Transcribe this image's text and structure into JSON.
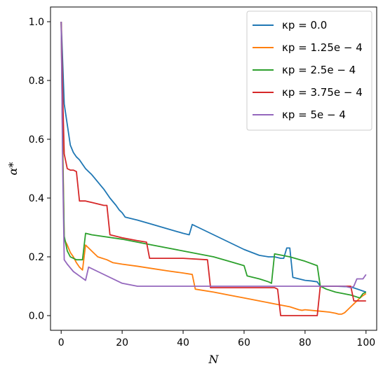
{
  "chart_data": {
    "type": "line",
    "xlabel": "N",
    "ylabel": "α*",
    "xlim": [
      -3.5,
      103.5
    ],
    "ylim": [
      -0.05,
      1.05
    ],
    "xticks": [
      0,
      20,
      40,
      60,
      80,
      100
    ],
    "yticks": [
      0.0,
      0.2,
      0.4,
      0.6,
      0.8,
      1.0
    ],
    "xtick_labels": [
      "0",
      "20",
      "40",
      "60",
      "80",
      "100"
    ],
    "ytick_labels": [
      "0.0",
      "0.2",
      "0.4",
      "0.6",
      "0.8",
      "1.0"
    ],
    "grid": false,
    "legend_position": "top-right",
    "series": [
      {
        "name": "κp = 0.0",
        "color": "#1f77b4",
        "x": [
          0,
          1,
          2,
          3,
          4,
          5,
          6,
          7,
          8,
          10,
          12,
          14,
          16,
          18,
          19,
          20,
          21,
          25,
          30,
          35,
          40,
          42,
          43,
          45,
          50,
          55,
          60,
          65,
          68,
          70,
          72,
          73,
          74,
          75,
          76,
          80,
          82,
          84,
          85,
          90,
          95,
          100
        ],
        "y": [
          1.0,
          0.72,
          0.65,
          0.58,
          0.555,
          0.54,
          0.53,
          0.515,
          0.5,
          0.48,
          0.455,
          0.43,
          0.4,
          0.375,
          0.36,
          0.35,
          0.335,
          0.325,
          0.31,
          0.295,
          0.28,
          0.275,
          0.31,
          0.3,
          0.275,
          0.25,
          0.225,
          0.205,
          0.2,
          0.2,
          0.195,
          0.195,
          0.23,
          0.23,
          0.13,
          0.12,
          0.118,
          0.115,
          0.1,
          0.1,
          0.098,
          0.08
        ]
      },
      {
        "name": "κp = 1.25e − 4",
        "color": "#ff7f0e",
        "x": [
          0,
          0.5,
          1,
          2,
          3,
          4,
          5,
          6,
          7,
          8,
          10,
          12,
          15,
          17,
          20,
          25,
          30,
          35,
          40,
          43,
          44,
          50,
          55,
          60,
          65,
          70,
          75,
          78,
          79,
          80,
          85,
          88,
          90,
          91,
          92,
          93,
          94,
          95,
          96,
          97,
          98,
          99,
          100
        ],
        "y": [
          1.0,
          0.6,
          0.26,
          0.24,
          0.215,
          0.2,
          0.18,
          0.165,
          0.155,
          0.24,
          0.22,
          0.2,
          0.19,
          0.18,
          0.175,
          0.168,
          0.16,
          0.152,
          0.145,
          0.14,
          0.09,
          0.08,
          0.07,
          0.06,
          0.05,
          0.04,
          0.03,
          0.02,
          0.018,
          0.02,
          0.015,
          0.012,
          0.008,
          0.005,
          0.005,
          0.01,
          0.02,
          0.03,
          0.04,
          0.05,
          0.06,
          0.068,
          0.075
        ]
      },
      {
        "name": "κp = 2.5e − 4",
        "color": "#2ca02c",
        "x": [
          0,
          0.5,
          1,
          2,
          3,
          4,
          5,
          6,
          7,
          8,
          10,
          20,
          30,
          40,
          50,
          55,
          60,
          61,
          65,
          68,
          69,
          70,
          75,
          80,
          84,
          85,
          86,
          87,
          90,
          95,
          98,
          99,
          100
        ],
        "y": [
          1.0,
          0.55,
          0.27,
          0.22,
          0.2,
          0.195,
          0.19,
          0.19,
          0.19,
          0.28,
          0.275,
          0.26,
          0.24,
          0.22,
          0.2,
          0.185,
          0.17,
          0.135,
          0.125,
          0.115,
          0.11,
          0.21,
          0.2,
          0.185,
          0.17,
          0.1,
          0.095,
          0.09,
          0.08,
          0.07,
          0.06,
          0.075,
          0.08
        ]
      },
      {
        "name": "κp = 3.75e − 4",
        "color": "#d62728",
        "x": [
          0,
          0.5,
          1,
          2,
          3,
          4,
          5,
          6,
          7,
          8,
          10,
          12,
          14,
          15,
          16,
          20,
          25,
          28,
          29,
          32,
          40,
          48,
          49,
          50,
          55,
          60,
          65,
          70,
          71,
          72,
          75,
          80,
          84,
          85,
          86,
          87,
          88,
          90,
          91,
          92,
          93,
          94,
          95,
          96,
          97,
          98,
          100
        ],
        "y": [
          1.0,
          0.75,
          0.55,
          0.5,
          0.495,
          0.495,
          0.49,
          0.39,
          0.39,
          0.39,
          0.385,
          0.38,
          0.375,
          0.375,
          0.275,
          0.265,
          0.255,
          0.25,
          0.195,
          0.195,
          0.195,
          0.19,
          0.095,
          0.095,
          0.095,
          0.095,
          0.095,
          0.095,
          0.09,
          0.0,
          0.0,
          0.0,
          0.0,
          0.1,
          0.1,
          0.1,
          0.1,
          0.1,
          0.1,
          0.1,
          0.1,
          0.1,
          0.1,
          0.05,
          0.05,
          0.05,
          0.05
        ]
      },
      {
        "name": "κp = 5e − 4",
        "color": "#9467bd",
        "x": [
          0,
          0.5,
          1,
          2,
          4,
          6,
          8,
          9,
          12,
          20,
          25,
          30,
          40,
          50,
          60,
          70,
          80,
          85,
          90,
          93,
          95,
          96,
          97,
          98,
          99,
          100
        ],
        "y": [
          1.0,
          0.5,
          0.19,
          0.175,
          0.15,
          0.135,
          0.12,
          0.165,
          0.15,
          0.11,
          0.1,
          0.1,
          0.1,
          0.1,
          0.1,
          0.1,
          0.1,
          0.1,
          0.1,
          0.1,
          0.095,
          0.1,
          0.125,
          0.125,
          0.125,
          0.14
        ]
      }
    ]
  }
}
